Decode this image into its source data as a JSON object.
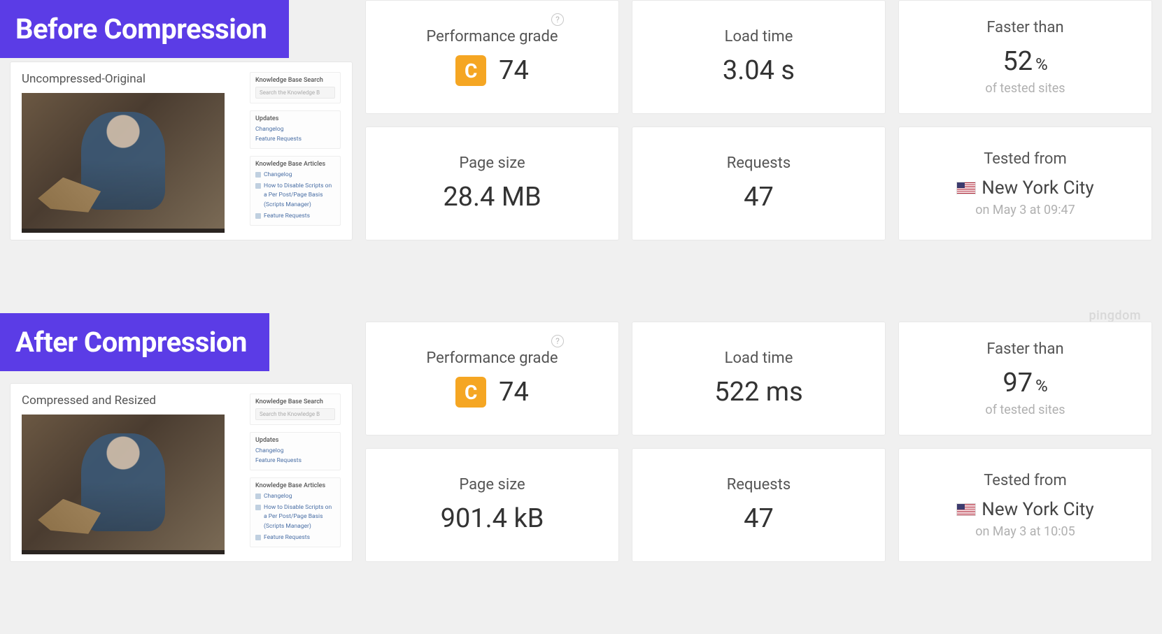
{
  "colors": {
    "banner_bg": "#5b3ce6",
    "banner_text": "#ffffff",
    "card_bg": "#ffffff",
    "card_border": "#e8e8e8",
    "page_bg": "#f0f0f0",
    "label_color": "#555555",
    "value_color": "#333333",
    "sub_color": "#b0b0b0",
    "grade_badge_bg": "#f5a623",
    "link_color": "#4a6fa5"
  },
  "watermark": "pingdom",
  "sidebar": {
    "search_heading": "Knowledge Base Search",
    "search_placeholder": "Search the Knowledge B",
    "updates_heading": "Updates",
    "updates_links": [
      "Changelog",
      "Feature Requests"
    ],
    "articles_heading": "Knowledge Base Articles",
    "articles": [
      "Changelog",
      "How to Disable Scripts on a Per Post/Page Basis (Scripts Manager)",
      "Feature Requests"
    ]
  },
  "before": {
    "banner": "Before Compression",
    "preview_title": "Uncompressed-Original",
    "metrics": {
      "perf_label": "Performance grade",
      "perf_grade_letter": "C",
      "perf_grade_score": "74",
      "load_label": "Load time",
      "load_value": "3.04 s",
      "faster_label": "Faster than",
      "faster_value": "52",
      "faster_unit": "%",
      "faster_sub": "of tested sites",
      "size_label": "Page size",
      "size_value": "28.4 MB",
      "req_label": "Requests",
      "req_value": "47",
      "tested_label": "Tested from",
      "tested_loc": "New York City",
      "tested_time": "on May 3 at 09:47"
    }
  },
  "after": {
    "banner": "After Compression",
    "preview_title": "Compressed and Resized",
    "metrics": {
      "perf_label": "Performance grade",
      "perf_grade_letter": "C",
      "perf_grade_score": "74",
      "load_label": "Load time",
      "load_value": "522 ms",
      "faster_label": "Faster than",
      "faster_value": "97",
      "faster_unit": "%",
      "faster_sub": "of tested sites",
      "size_label": "Page size",
      "size_value": "901.4 kB",
      "req_label": "Requests",
      "req_value": "47",
      "tested_label": "Tested from",
      "tested_loc": "New York City",
      "tested_time": "on May 3 at 10:05"
    }
  }
}
